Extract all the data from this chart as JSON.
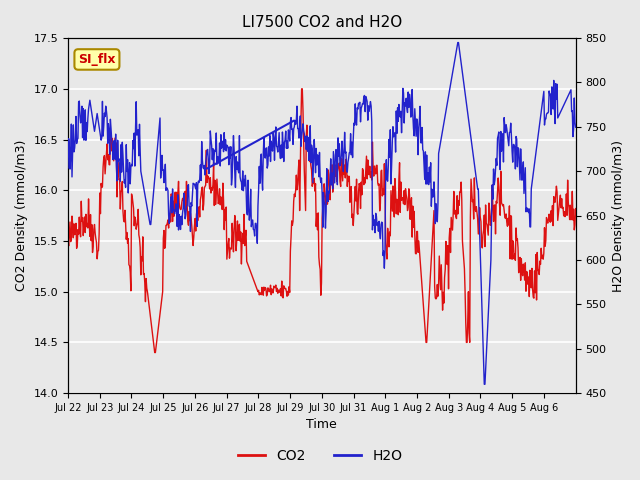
{
  "title": "LI7500 CO2 and H2O",
  "xlabel": "Time",
  "ylabel_left": "CO2 Density (mmol/m3)",
  "ylabel_right": "H2O Density (mmol/m3)",
  "ylim_left": [
    14.0,
    17.5
  ],
  "ylim_right": [
    450,
    850
  ],
  "yticks_left": [
    14.0,
    14.5,
    15.0,
    15.5,
    16.0,
    16.5,
    17.0,
    17.5
  ],
  "yticks_right": [
    450,
    500,
    550,
    600,
    650,
    700,
    750,
    800,
    850
  ],
  "xtick_labels": [
    "Jul 22",
    "Jul 23",
    "Jul 24",
    "Jul 25",
    "Jul 26",
    "Jul 27",
    "Jul 28",
    "Jul 29",
    "Jul 30",
    "Jul 31",
    "Aug 1",
    "Aug 2",
    "Aug 3",
    "Aug 4",
    "Aug 5",
    "Aug 6"
  ],
  "background_color": "#e8e8e8",
  "plot_bg_color": "#e8e8e8",
  "grid_color": "#ffffff",
  "co2_color": "#dd1111",
  "h2o_color": "#2222cc",
  "legend_co2": "CO2",
  "legend_h2o": "H2O",
  "si_flx_label": "SI_flx",
  "si_flx_bg": "#ffffaa",
  "si_flx_border": "#aa8800",
  "annotation_arrow_color": "#2222cc"
}
